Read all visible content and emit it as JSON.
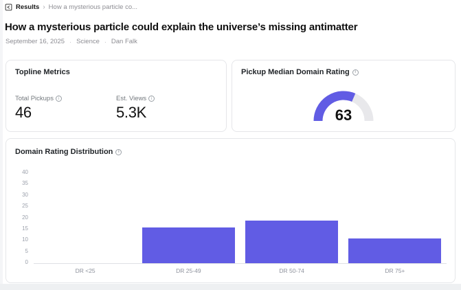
{
  "colors": {
    "accent": "#615CE4",
    "gauge_track": "#E8E8EB",
    "axis_line": "#DFE0E4"
  },
  "breadcrumb": {
    "root": "Results",
    "separator": "›",
    "current": "How a mysterious particle co..."
  },
  "article": {
    "title": "How a mysterious particle could explain the universe’s missing antimatter",
    "date": "September 16, 2025",
    "separator": "·",
    "category": "Science",
    "author": "Dan Falk"
  },
  "topline": {
    "title": "Topline Metrics",
    "metrics": [
      {
        "label": "Total Pickups",
        "value": "46"
      },
      {
        "label": "Est. Views",
        "value": "5.3K"
      }
    ]
  },
  "gauge": {
    "title": "Pickup Median Domain Rating",
    "value": 63,
    "min": 0,
    "max": 100
  },
  "chart_data": {
    "type": "bar",
    "title": "Domain Rating Distribution",
    "categories": [
      "DR <25",
      "DR 25-49",
      "DR 50-74",
      "DR 75+"
    ],
    "values": [
      0,
      16,
      19,
      11
    ],
    "xlabel": "",
    "ylabel": "",
    "ylim": [
      0,
      40
    ],
    "yticks": [
      0,
      5,
      10,
      15,
      20,
      25,
      30,
      35,
      40
    ],
    "grid": false,
    "legend": false
  },
  "icons": {
    "info_glyph": "i"
  }
}
